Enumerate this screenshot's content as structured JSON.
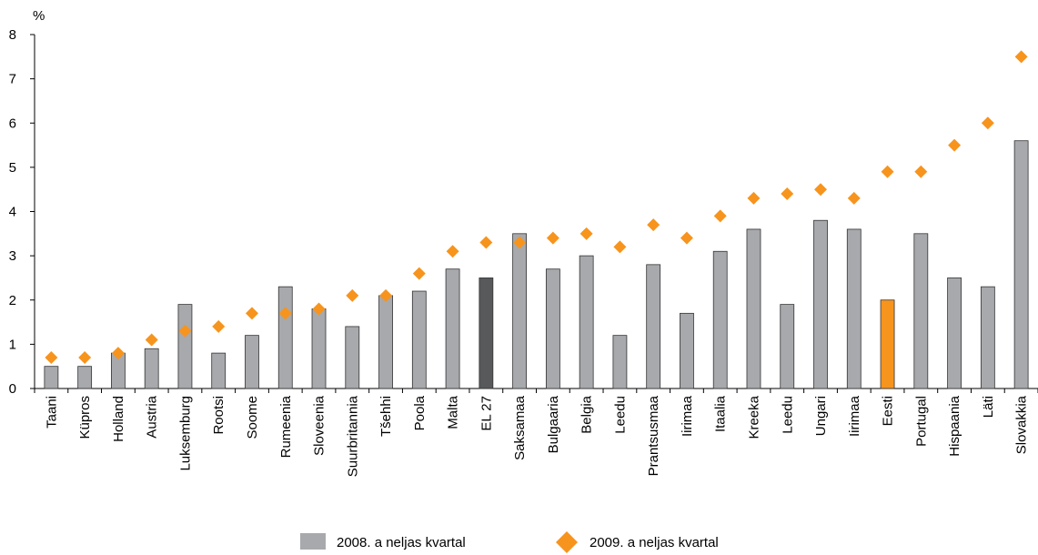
{
  "chart_data": {
    "type": "bar_scatter",
    "y_label": "%",
    "categories": [
      "Taani",
      "Küpros",
      "Holland",
      "Austria",
      "Luksemburg",
      "Rootsi",
      "Soome",
      "Rumeenia",
      "Sloveenia",
      "Suurbritannia",
      "Tšehhi",
      "Poola",
      "Malta",
      "EL 27",
      "Saksamaa",
      "Bulgaaria",
      "Belgia",
      "Leedu",
      "Prantsusmaa",
      "Iirimaa",
      "Itaalia",
      "Kreeka",
      "Leedu",
      "Ungari",
      "Iirimaa",
      "Eesti",
      "Portugal",
      "Hispaania",
      "Läti",
      "Slovakkia"
    ],
    "series": [
      {
        "name": "2008. a neljas kvartal",
        "kind": "bar",
        "color": "#a7a9ac",
        "colors": [
          "#a7a9ac",
          "#a7a9ac",
          "#a7a9ac",
          "#a7a9ac",
          "#a7a9ac",
          "#a7a9ac",
          "#a7a9ac",
          "#a7a9ac",
          "#a7a9ac",
          "#a7a9ac",
          "#a7a9ac",
          "#a7a9ac",
          "#a7a9ac",
          "#58595b",
          "#a7a9ac",
          "#a7a9ac",
          "#a7a9ac",
          "#a7a9ac",
          "#a7a9ac",
          "#a7a9ac",
          "#a7a9ac",
          "#a7a9ac",
          "#a7a9ac",
          "#a7a9ac",
          "#a7a9ac",
          "#f7941d",
          "#a7a9ac",
          "#a7a9ac",
          "#a7a9ac",
          "#a7a9ac"
        ],
        "values": [
          0.5,
          0.5,
          0.8,
          0.9,
          1.9,
          0.8,
          1.2,
          2.3,
          1.8,
          1.4,
          2.1,
          2.2,
          2.7,
          2.5,
          3.5,
          2.7,
          3.0,
          1.2,
          2.8,
          1.7,
          3.1,
          3.6,
          1.9,
          3.8,
          3.6,
          2.0,
          3.5,
          2.5,
          2.3,
          5.6
        ]
      },
      {
        "name": "2009. a neljas kvartal",
        "kind": "diamond",
        "color": "#f7941d",
        "values": [
          0.7,
          0.7,
          0.8,
          1.1,
          1.3,
          1.4,
          1.7,
          1.7,
          1.8,
          2.1,
          2.1,
          2.6,
          3.1,
          3.3,
          3.3,
          3.4,
          3.5,
          3.2,
          3.7,
          3.4,
          3.9,
          4.3,
          4.4,
          4.5,
          4.3,
          4.9,
          4.9,
          5.5,
          6.0,
          7.5
        ]
      }
    ],
    "ylim": [
      0,
      8
    ],
    "yticks": [
      0,
      1,
      2,
      3,
      4,
      5,
      6,
      7,
      8
    ],
    "grid": false
  }
}
